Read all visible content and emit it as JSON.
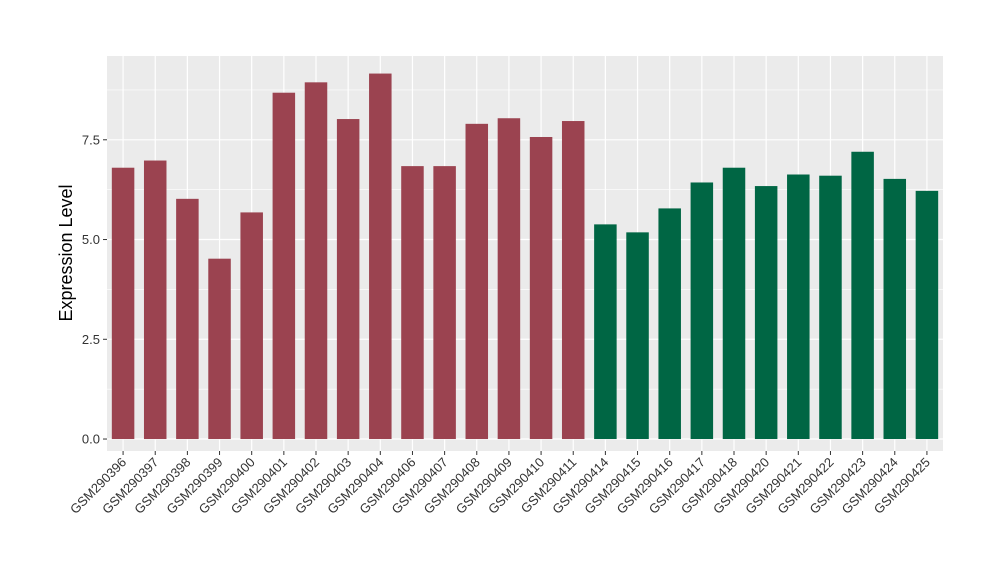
{
  "chart_data": {
    "type": "bar",
    "title": "",
    "xlabel": "",
    "ylabel": "Expression Level",
    "ylim": [
      -0.3,
      9.6
    ],
    "yticks": [
      0.0,
      2.5,
      5.0,
      7.5
    ],
    "ytick_labels": [
      "0.0",
      "2.5",
      "5.0",
      "7.5"
    ],
    "grid": true,
    "legend": "none",
    "colors": {
      "group1": "#9b4350",
      "group2": "#006644",
      "panel": "#ebebeb",
      "grid": "#ffffff"
    },
    "categories": [
      "GSM290396",
      "GSM290397",
      "GSM290398",
      "GSM290399",
      "GSM290400",
      "GSM290401",
      "GSM290402",
      "GSM290403",
      "GSM290404",
      "GSM290406",
      "GSM290407",
      "GSM290408",
      "GSM290409",
      "GSM290410",
      "GSM290411",
      "GSM290414",
      "GSM290415",
      "GSM290416",
      "GSM290417",
      "GSM290418",
      "GSM290420",
      "GSM290421",
      "GSM290422",
      "GSM290423",
      "GSM290424",
      "GSM290425"
    ],
    "values": [
      6.8,
      6.98,
      6.02,
      4.52,
      5.68,
      8.68,
      8.94,
      8.02,
      9.16,
      6.84,
      6.84,
      7.9,
      8.04,
      7.57,
      7.97,
      5.38,
      5.18,
      5.78,
      6.43,
      6.8,
      6.34,
      6.63,
      6.6,
      7.2,
      6.52,
      6.22
    ],
    "groups": [
      1,
      1,
      1,
      1,
      1,
      1,
      1,
      1,
      1,
      1,
      1,
      1,
      1,
      1,
      1,
      2,
      2,
      2,
      2,
      2,
      2,
      2,
      2,
      2,
      2,
      2
    ]
  }
}
